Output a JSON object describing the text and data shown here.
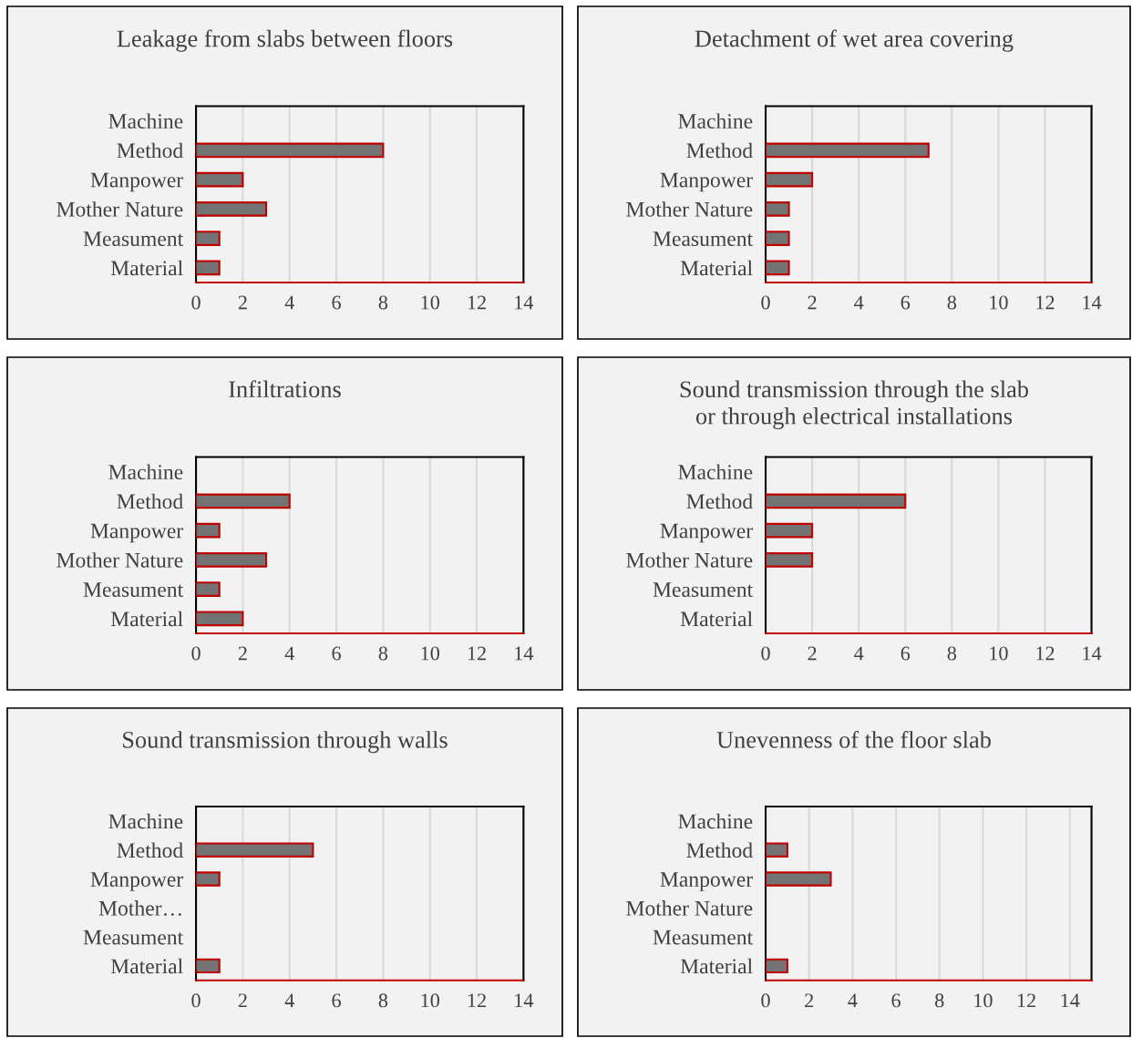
{
  "chart_data": [
    {
      "type": "bar",
      "orientation": "horizontal",
      "title": "Leakage from slabs between floors",
      "categories": [
        "Machine",
        "Method",
        "Manpower",
        "Mother Nature",
        "Measument",
        "Material"
      ],
      "series": [
        {
          "color": "#737373",
          "values": [
            null,
            8,
            2,
            3,
            1,
            1
          ]
        }
      ],
      "xlim": [
        0,
        14
      ],
      "xticks": [
        0,
        2,
        4,
        6,
        8,
        10,
        12,
        14
      ],
      "grid": "x"
    },
    {
      "type": "bar",
      "orientation": "horizontal",
      "title": "Detachment of wet area covering",
      "categories": [
        "Machine",
        "Method",
        "Manpower",
        "Mother Nature",
        "Measument",
        "Material"
      ],
      "series": [
        {
          "color": "#737373",
          "values": [
            null,
            7,
            2,
            1,
            1,
            1
          ]
        }
      ],
      "xlim": [
        0,
        14
      ],
      "xticks": [
        0,
        2,
        4,
        6,
        8,
        10,
        12,
        14
      ],
      "grid": "x"
    },
    {
      "type": "bar",
      "orientation": "horizontal",
      "title": "Infiltrations",
      "categories": [
        "Machine",
        "Method",
        "Manpower",
        "Mother Nature",
        "Measument",
        "Material"
      ],
      "series": [
        {
          "color": "#737373",
          "values": [
            null,
            4,
            1,
            3,
            1,
            2
          ]
        }
      ],
      "xlim": [
        0,
        14
      ],
      "xticks": [
        0,
        2,
        4,
        6,
        8,
        10,
        12,
        14
      ],
      "grid": "x"
    },
    {
      "type": "bar",
      "orientation": "horizontal",
      "title": "Sound transmission through the slab\nor through electrical installations",
      "categories": [
        "Machine",
        "Method",
        "Manpower",
        "Mother Nature",
        "Measument",
        "Material"
      ],
      "series": [
        {
          "color": "#737373",
          "values": [
            null,
            6,
            2,
            2,
            null,
            null
          ]
        }
      ],
      "xlim": [
        0,
        14
      ],
      "xticks": [
        0,
        2,
        4,
        6,
        8,
        10,
        12,
        14
      ],
      "grid": "x"
    },
    {
      "type": "bar",
      "orientation": "horizontal",
      "title": "Sound transmission through walls",
      "categories": [
        "Machine",
        "Method",
        "Manpower",
        "Mother…",
        "Measument",
        "Material"
      ],
      "series": [
        {
          "color": "#737373",
          "values": [
            null,
            5,
            1,
            null,
            null,
            1
          ]
        }
      ],
      "xlim": [
        0,
        14
      ],
      "xticks": [
        0,
        2,
        4,
        6,
        8,
        10,
        12,
        14
      ],
      "grid": "x"
    },
    {
      "type": "bar",
      "orientation": "horizontal",
      "title": "Unevenness of the floor slab",
      "categories": [
        "Machine",
        "Method",
        "Manpower",
        "Mother Nature",
        "Measument",
        "Material"
      ],
      "series": [
        {
          "color": "#737373",
          "values": [
            null,
            1,
            3,
            null,
            null,
            1
          ]
        }
      ],
      "xlim": [
        0,
        15
      ],
      "xticks": [
        0,
        2,
        4,
        6,
        8,
        10,
        12,
        14
      ],
      "grid": "x"
    }
  ]
}
